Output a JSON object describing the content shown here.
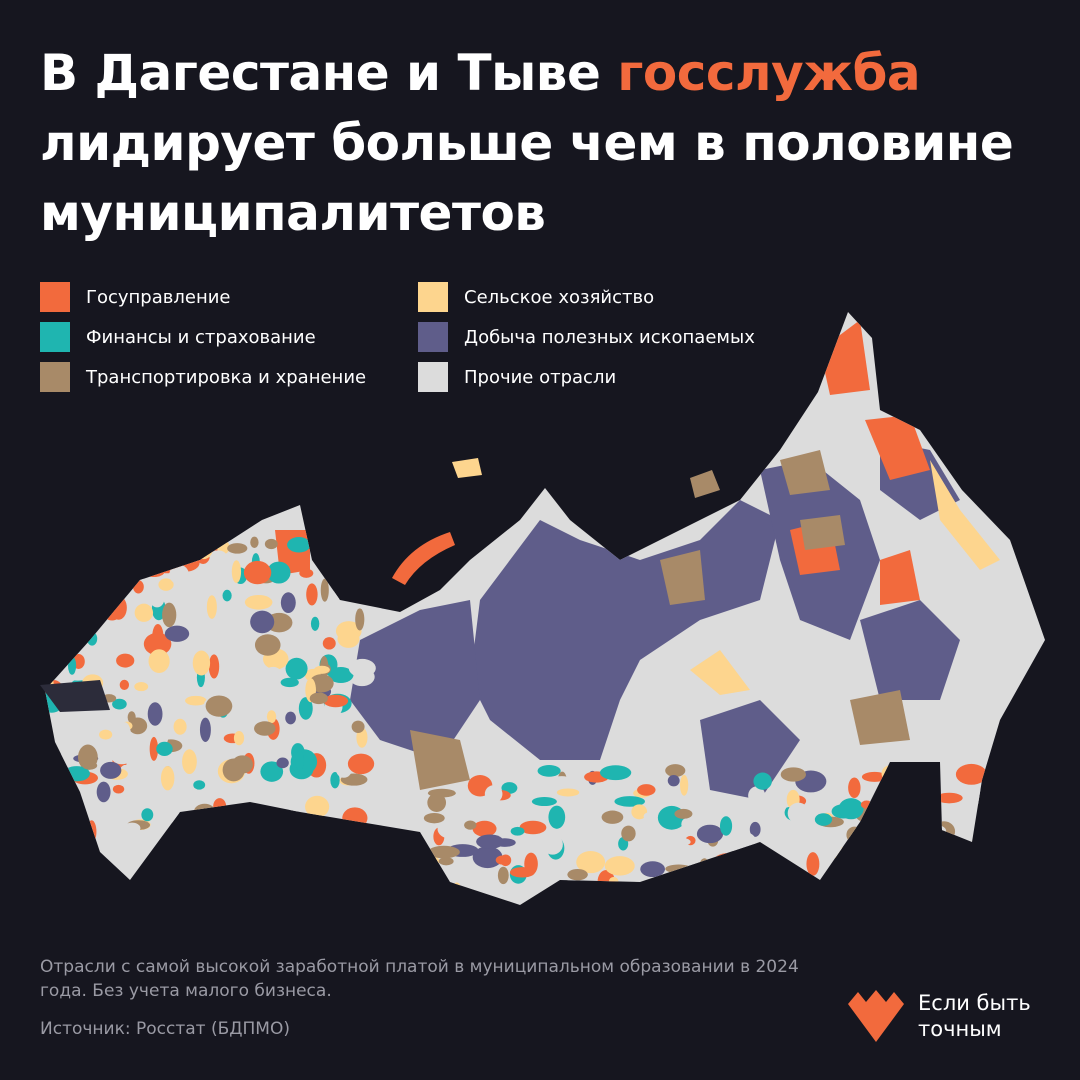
{
  "title": {
    "part1": "В Дагестане и Тыве ",
    "accent": "госслужба",
    "part2": " лидирует больше чем в половине муниципалитетов"
  },
  "legend": [
    {
      "key": "gov",
      "label": "Госуправление",
      "color": "#f26a3d"
    },
    {
      "key": "agri",
      "label": "Сельское хозяйство",
      "color": "#fdd58e"
    },
    {
      "key": "fin",
      "label": "Финансы и страхование",
      "color": "#1fb5b0"
    },
    {
      "key": "mining",
      "label": "Добыча полезных ископаемых",
      "color": "#5f5d8a"
    },
    {
      "key": "transport",
      "label": "Транспортировка и хранение",
      "color": "#a88a68"
    },
    {
      "key": "other",
      "label": "Прочие отрасли",
      "color": "#dcdcdc"
    }
  ],
  "note": "Отрасли с самой высокой заработной платой в муниципальном образовании в 2024 года. Без учета малого бизнеса.",
  "source": "Источник: Росстат (БДПМО)",
  "logo": {
    "line1": "Если быть",
    "line2": "точным",
    "color": "#f26a3d"
  },
  "colors": {
    "background": "#16161f",
    "accent": "#f26a3d"
  }
}
